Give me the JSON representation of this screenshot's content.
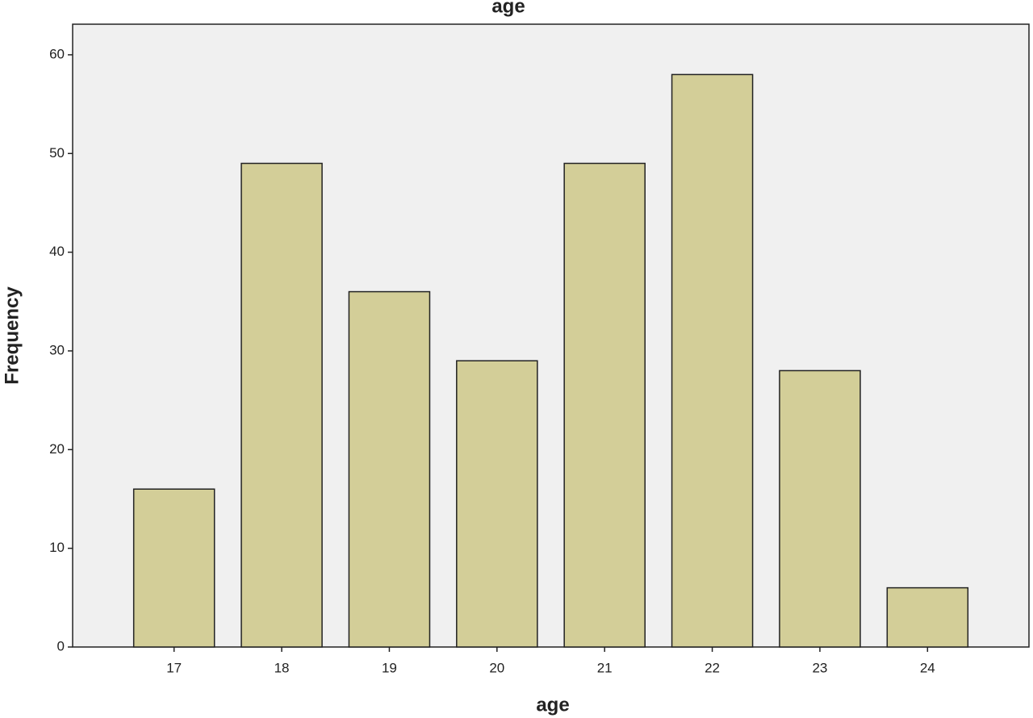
{
  "chart_data": {
    "type": "bar",
    "title": "age",
    "x_label": "age",
    "y_label": "Frequency",
    "categories": [
      "17",
      "18",
      "19",
      "20",
      "21",
      "22",
      "23",
      "24"
    ],
    "values": [
      16,
      49,
      36,
      29,
      49,
      58,
      28,
      6
    ],
    "color": "#d3ce98",
    "ylim": [
      0,
      63.1
    ],
    "yticks": [
      0,
      10,
      20,
      30,
      40,
      50,
      60
    ],
    "grid": false
  }
}
